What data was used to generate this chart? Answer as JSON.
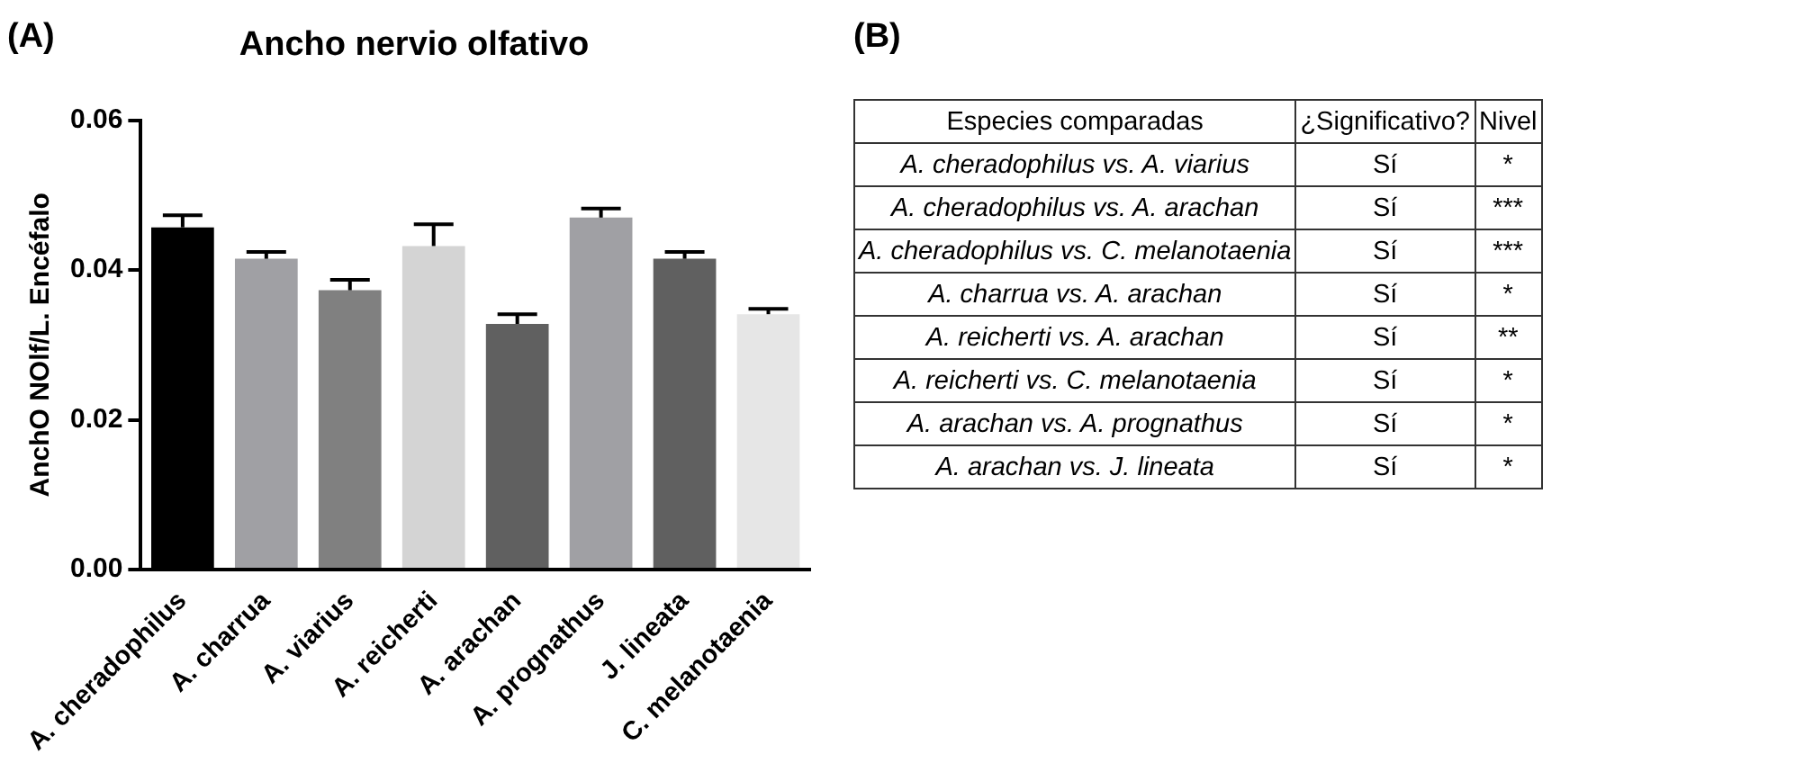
{
  "chart_data": [
    {
      "type": "bar",
      "title": "Ancho nervio olfativo",
      "ylabel": "AnchO NOlf/L. Encéfalo",
      "annotations": [
        "(A)"
      ],
      "categories": [
        "A. cheradophilus",
        "A. charrua",
        "A. viarius",
        "A. reicherti",
        "A. arachan",
        "A. prognathus",
        "J. lineata",
        "C. melanotaenia"
      ],
      "values": [
        0.0457,
        0.0415,
        0.0373,
        0.0432,
        0.0328,
        0.047,
        0.0415,
        0.0341
      ],
      "errors": [
        [
          0.0457,
          0.0473
        ],
        [
          0.0415,
          0.0424
        ],
        [
          0.0373,
          0.0387
        ],
        [
          0.0432,
          0.0461
        ],
        [
          0.0328,
          0.0341
        ],
        [
          0.047,
          0.0482
        ],
        [
          0.0415,
          0.0424
        ],
        [
          0.0341,
          0.0348
        ]
      ],
      "colors": [
        "#000000",
        "#a0a0a4",
        "#808080",
        "#d4d4d4",
        "#606060",
        "#a0a0a4",
        "#606060",
        "#e6e6e6"
      ],
      "ylim": [
        0,
        0.06
      ],
      "yticks": [
        {
          "value": 0,
          "label": "0.00"
        },
        {
          "value": 0.02,
          "label": "0.02"
        },
        {
          "value": 0.04,
          "label": "0.04"
        },
        {
          "value": 0.06,
          "label": "0.06"
        }
      ],
      "grid": false,
      "legend": false
    },
    {
      "type": "other",
      "annotations": [
        "(B)"
      ],
      "categories": [
        "Especies comparadas",
        "¿Significativo?",
        "Nivel"
      ],
      "cell_labels": [
        [
          "A. cheradophilus vs. A. viarius",
          "Sí",
          "*"
        ],
        [
          "A. cheradophilus vs. A. arachan",
          "Sí",
          "***"
        ],
        [
          "A. cheradophilus vs. C. melanotaenia",
          "Sí",
          "***"
        ],
        [
          "A. charrua vs. A. arachan",
          "Sí",
          "*"
        ],
        [
          "A. reicherti vs. A. arachan",
          "Sí",
          "**"
        ],
        [
          "A. reicherti vs. C. melanotaenia",
          "Sí",
          "*"
        ],
        [
          "A. arachan vs. A. prognathus",
          "Sí",
          "*"
        ],
        [
          "A. arachan vs. J. lineata",
          "Sí",
          "*"
        ]
      ]
    }
  ]
}
